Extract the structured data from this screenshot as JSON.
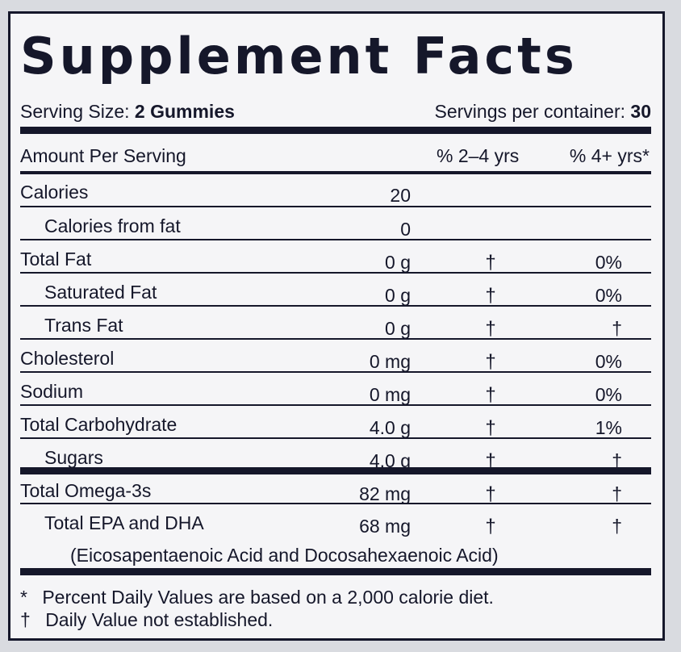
{
  "title": "Supplement Facts",
  "serving": {
    "size_label": "Serving Size:",
    "size_value": "2 Gummies",
    "per_container_label": "Servings per container:",
    "per_container_value": "30"
  },
  "header": {
    "amount_per_serving": "Amount Per Serving",
    "col_dv1": "% 2–4 yrs",
    "col_dv2": "% 4+ yrs*"
  },
  "rows": [
    {
      "name": "Calories",
      "amount": "20",
      "dv1": "",
      "dv2": ""
    },
    {
      "name": "Calories from fat",
      "amount": "0",
      "dv1": "",
      "dv2": ""
    },
    {
      "name": "Total Fat",
      "amount": "0 g",
      "dv1": "†",
      "dv2": "0%"
    },
    {
      "name": "Saturated Fat",
      "amount": "0 g",
      "dv1": "†",
      "dv2": "0%"
    },
    {
      "name": "Trans Fat",
      "amount": "0 g",
      "dv1": "†",
      "dv2": "†"
    },
    {
      "name": "Cholesterol",
      "amount": "0 mg",
      "dv1": "†",
      "dv2": "0%"
    },
    {
      "name": "Sodium",
      "amount": "0 mg",
      "dv1": "†",
      "dv2": "0%"
    },
    {
      "name": "Total Carbohydrate",
      "amount": "4.0 g",
      "dv1": "†",
      "dv2": "1%"
    },
    {
      "name": "Sugars",
      "amount": "4.0 g",
      "dv1": "†",
      "dv2": "†"
    },
    {
      "name": "Total Omega-3s",
      "amount": "82 mg",
      "dv1": "†",
      "dv2": "†"
    },
    {
      "name": "Total EPA and DHA",
      "amount": "68 mg",
      "dv1": "†",
      "dv2": "†"
    }
  ],
  "epa_dha_note": "(Eicosapentaenoic Acid and Docosahexaenoic Acid)",
  "footnotes": {
    "star_symbol": "*",
    "star_text": "Percent Daily Values are based on a 2,000 calorie diet.",
    "dagger_symbol": "†",
    "dagger_text": "Daily Value not established."
  }
}
